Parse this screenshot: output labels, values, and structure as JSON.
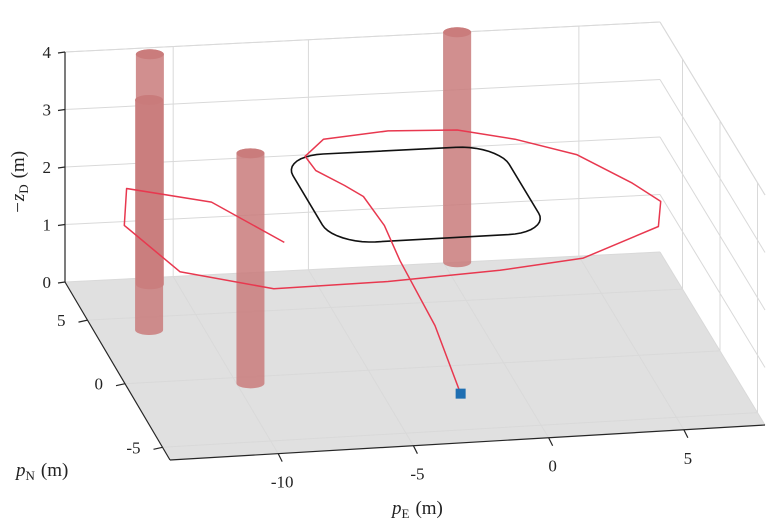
{
  "chart_data": {
    "type": "line",
    "projection": "3d",
    "axes": {
      "x": {
        "label_main": "p",
        "label_sub": "E",
        "label_unit": "(m)",
        "ticks": [
          -10,
          -5,
          0,
          5
        ],
        "range": [
          -14,
          8
        ]
      },
      "y": {
        "label_main": "p",
        "label_sub": "N",
        "label_unit": "(m)",
        "ticks": [
          -5,
          0,
          5
        ],
        "range": [
          -6,
          8
        ]
      },
      "z": {
        "label_main": "−z",
        "label_sub": "D",
        "label_unit": "(m)",
        "ticks": [
          0,
          1,
          2,
          3,
          4
        ],
        "range": [
          0,
          4
        ]
      }
    },
    "grid": true,
    "floor_color": "#e0e0e0",
    "reference_path": {
      "color": "#111111",
      "altitude": 2,
      "shape": "rounded-rectangle",
      "x_range": [
        -6,
        2
      ],
      "y_range": [
        1,
        8
      ]
    },
    "flight_trajectory": {
      "color": "#e8384f",
      "start_marker_color": "#1f6fb2",
      "start": [
        -2.2,
        -2.2,
        0
      ],
      "points": [
        [
          -2.2,
          -2.2,
          0
        ],
        [
          -2.4,
          0.5,
          0.6
        ],
        [
          -3,
          3,
          1.2
        ],
        [
          -3.3,
          4,
          1.6
        ],
        [
          -3.8,
          5,
          1.9
        ],
        [
          -4.3,
          5.7,
          1.95
        ],
        [
          -5.2,
          6.3,
          2.1
        ],
        [
          -5.4,
          7,
          2.2
        ],
        [
          -4.5,
          7.8,
          2.3
        ],
        [
          -2,
          8.2,
          2.3
        ],
        [
          0.5,
          8,
          2.3
        ],
        [
          2.5,
          7.5,
          2.2
        ],
        [
          4.5,
          6.5,
          2.1
        ],
        [
          6,
          4.5,
          2
        ],
        [
          6.5,
          2.5,
          2.1
        ],
        [
          6,
          1,
          2
        ],
        [
          3,
          0.2,
          1.7
        ],
        [
          0,
          0.5,
          1.5
        ],
        [
          -4,
          1,
          1.3
        ],
        [
          -8,
          1.8,
          1.1
        ],
        [
          -11,
          3.5,
          1.1
        ],
        [
          -12.5,
          5.5,
          1.5
        ],
        [
          -12,
          7,
          1.8
        ],
        [
          -9,
          6.5,
          1.6
        ],
        [
          -7,
          4,
          1.4
        ]
      ]
    },
    "obstacles": {
      "color": "#c97b7b",
      "shape": "cylinder",
      "top_height": 4,
      "positions": [
        [
          -12,
          4
        ],
        [
          -9.5,
          -0.5
        ],
        [
          -11,
          7.5
        ],
        [
          0.5,
          8
        ]
      ]
    }
  }
}
